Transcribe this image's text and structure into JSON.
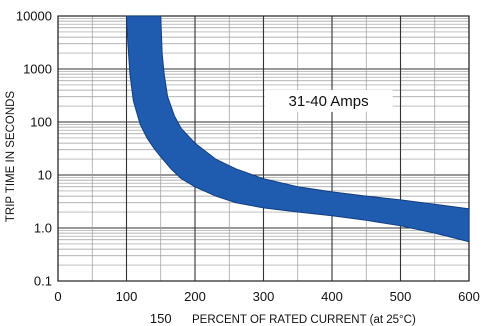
{
  "chart_data": {
    "type": "area",
    "title": "",
    "xlabel": "PERCENT OF RATED CURRENT (at 25°C)",
    "ylabel": "TRIP TIME IN SECONDS",
    "x_scale": "linear",
    "y_scale": "log",
    "xlim": [
      0,
      600
    ],
    "ylim": [
      0.1,
      10000
    ],
    "x_ticks": [
      0,
      100,
      200,
      300,
      400,
      500,
      600
    ],
    "x_tick_labels": [
      "0",
      "100",
      "200",
      "300",
      "400",
      "500",
      "600"
    ],
    "x_extra_tick": {
      "value": 150,
      "label": "150"
    },
    "y_ticks": [
      0.1,
      1,
      10,
      100,
      1000,
      10000
    ],
    "y_tick_labels": [
      "0.1",
      "1.0",
      "10",
      "100",
      "1000",
      "10000"
    ],
    "grid": true,
    "annotation": {
      "text": "31-40 Amps",
      "x": 395,
      "y": 250
    },
    "band_color": "#1f5cb0",
    "band_edge_color": "#123f80",
    "series": [
      {
        "role": "upper_bound",
        "x": [
          150,
          152,
          155,
          160,
          170,
          180,
          200,
          230,
          260,
          300,
          350,
          400,
          450,
          500,
          550,
          600
        ],
        "y": [
          10000,
          2000,
          800,
          300,
          130,
          75,
          40,
          20,
          13,
          8.5,
          6,
          4.8,
          4,
          3.4,
          2.8,
          2.3
        ]
      },
      {
        "role": "lower_bound",
        "x": [
          100,
          102,
          105,
          110,
          120,
          130,
          140,
          150,
          165,
          180,
          200,
          230,
          260,
          300,
          350,
          400,
          450,
          500,
          550,
          600
        ],
        "y": [
          10000,
          3000,
          800,
          250,
          90,
          50,
          32,
          22,
          13,
          8.5,
          6,
          4,
          3,
          2.4,
          2,
          1.7,
          1.4,
          1.1,
          0.8,
          0.55
        ]
      }
    ]
  }
}
